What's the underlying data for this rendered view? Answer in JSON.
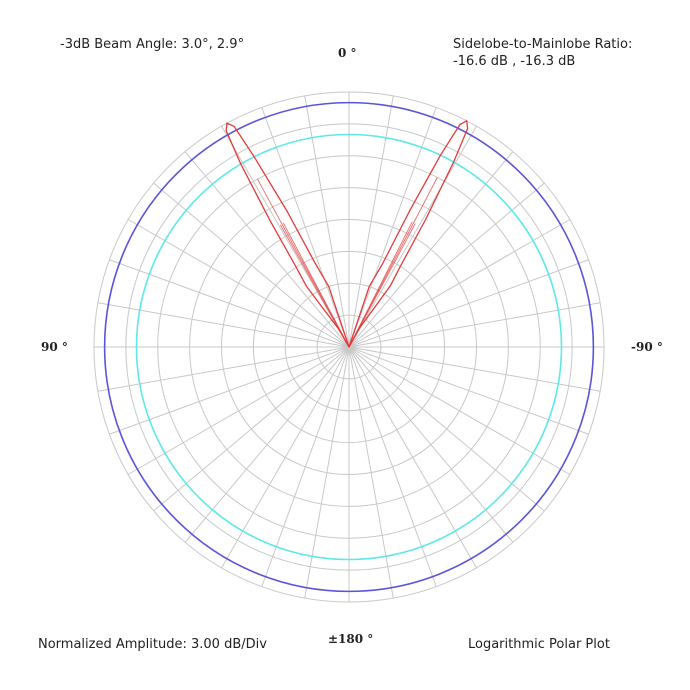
{
  "annotations": {
    "beam_angle": "-3dB Beam Angle: 3.0°, 2.9°",
    "ratio_title": "Sidelobe-to-Mainlobe Ratio:",
    "ratio_values": "-16.6 dB , -16.3 dB",
    "amplitude": "Normalized Amplitude: 3.00 dB/Div",
    "plot_type": "Logarithmic Polar Plot"
  },
  "angle_labels": {
    "top": "0 °",
    "left": "90 °",
    "right": "-90 °",
    "bottom": "±180 °"
  },
  "colors": {
    "grid": "#c8c8c8",
    "outer_ring": "#5a55d8",
    "inner_ring": "#5ee8e8",
    "beam": "#e23b3b",
    "text": "#222222"
  },
  "chart_data": {
    "type": "polar",
    "scale": "logarithmic",
    "db_per_division": 3.0,
    "rings": 8,
    "radial_spokes_deg_step": 10,
    "angle_direction": "0° at top, positive angles toward left",
    "reference_rings_db": {
      "outer": -1.0,
      "inner": -4.0
    },
    "series": [
      {
        "lobes": [
          {
            "side": "left",
            "points": [
              {
                "angle_deg": 0,
                "db": -24.0
              },
              {
                "angle_deg": 18.5,
                "db": -18.0
              },
              {
                "angle_deg": 22.0,
                "db": -15.5
              },
              {
                "angle_deg": 24.5,
                "db": -10.0
              },
              {
                "angle_deg": 26.5,
                "db": -4.0
              },
              {
                "angle_deg": 27.5,
                "db": -0.6
              },
              {
                "angle_deg": 28.6,
                "db": 0.0
              },
              {
                "angle_deg": 29.6,
                "db": -0.6
              },
              {
                "angle_deg": 30.6,
                "db": -4.0
              },
              {
                "angle_deg": 32.0,
                "db": -10.0
              },
              {
                "angle_deg": 33.5,
                "db": -15.0
              },
              {
                "angle_deg": 35.0,
                "db": -17.0
              },
              {
                "angle_deg": 34.0,
                "db": -19.5
              },
              {
                "angle_deg": 30.0,
                "db": -22.0
              },
              {
                "angle_deg": 0,
                "db": -24.0
              }
            ]
          },
          {
            "side": "right",
            "points": [
              {
                "angle_deg": 0,
                "db": -24.0
              },
              {
                "angle_deg": -18.5,
                "db": -18.0
              },
              {
                "angle_deg": -22.0,
                "db": -15.5
              },
              {
                "angle_deg": -24.0,
                "db": -10.0
              },
              {
                "angle_deg": -25.5,
                "db": -4.0
              },
              {
                "angle_deg": -26.5,
                "db": -0.6
              },
              {
                "angle_deg": -27.5,
                "db": 0.0
              },
              {
                "angle_deg": -28.5,
                "db": -0.6
              },
              {
                "angle_deg": -29.5,
                "db": -4.0
              },
              {
                "angle_deg": -31.0,
                "db": -10.0
              },
              {
                "angle_deg": -32.5,
                "db": -15.0
              },
              {
                "angle_deg": -34.0,
                "db": -17.0
              },
              {
                "angle_deg": -33.0,
                "db": -19.5
              },
              {
                "angle_deg": -29.0,
                "db": -22.0
              },
              {
                "angle_deg": 0,
                "db": -24.0
              }
            ]
          }
        ]
      }
    ]
  }
}
